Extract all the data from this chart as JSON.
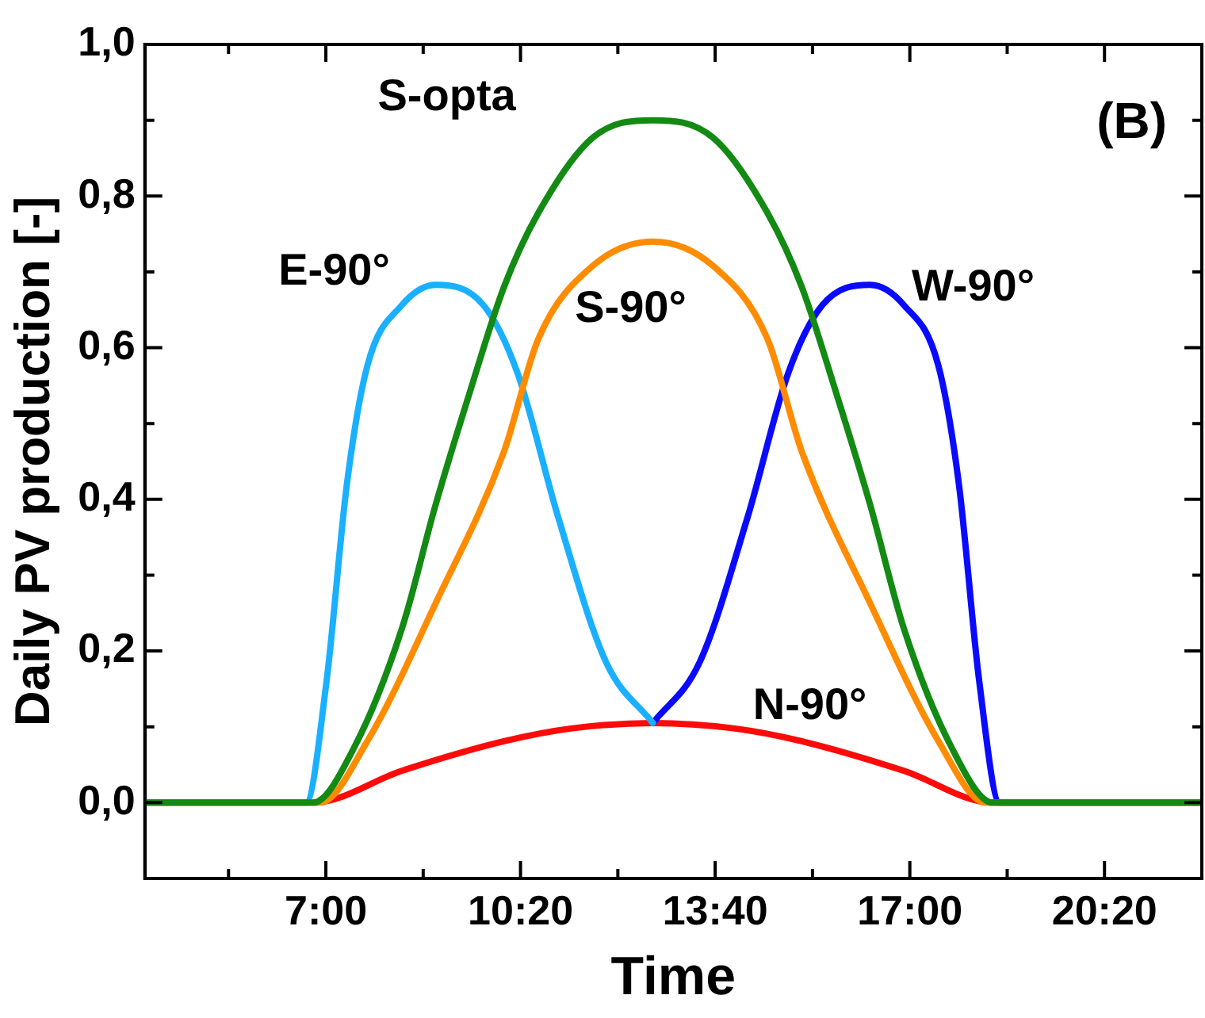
{
  "chart_data": {
    "type": "line",
    "xlabel": "Time",
    "ylabel": "Daily PV production [-]",
    "annotations": [
      "(B)"
    ],
    "xlim": [
      3.9,
      22
    ],
    "ylim": [
      -0.1,
      1.0
    ],
    "xticks": [
      {
        "value": 5.3333,
        "label": null
      },
      {
        "value": 7,
        "label": "7:00"
      },
      {
        "value": 8.6667,
        "label": null
      },
      {
        "value": 10.3333,
        "label": "10:20"
      },
      {
        "value": 12,
        "label": null
      },
      {
        "value": 13.6667,
        "label": "13:40"
      },
      {
        "value": 15.3333,
        "label": null
      },
      {
        "value": 17,
        "label": "17:00"
      },
      {
        "value": 18.6667,
        "label": null
      },
      {
        "value": 20.3333,
        "label": "20:20"
      }
    ],
    "yticks": [
      {
        "value": 0,
        "label": "0,0"
      },
      {
        "value": 0.1,
        "label": null
      },
      {
        "value": 0.2,
        "label": "0,2"
      },
      {
        "value": 0.3,
        "label": null
      },
      {
        "value": 0.4,
        "label": "0,4"
      },
      {
        "value": 0.5,
        "label": null
      },
      {
        "value": 0.6,
        "label": "0,6"
      },
      {
        "value": 0.7,
        "label": null
      },
      {
        "value": 0.8,
        "label": "0,8"
      },
      {
        "value": 0.9,
        "label": null
      },
      {
        "value": 1.0,
        "label": "1,0"
      }
    ],
    "grid": false,
    "legend": false,
    "marker": "none",
    "line_style": "solid",
    "series": [
      {
        "name": "S-opta",
        "color": "#138a13",
        "x": [
          3.9,
          6.78,
          7.48,
          8.3,
          8.88,
          9.46,
          10.05,
          10.64,
          11.57,
          12.6,
          13.63,
          14.56,
          15.15,
          15.74,
          16.32,
          16.9,
          17.72,
          18.42,
          22
        ],
        "values": [
          0,
          0,
          0.072,
          0.229,
          0.393,
          0.54,
          0.68,
          0.778,
          0.877,
          0.9,
          0.877,
          0.778,
          0.68,
          0.54,
          0.393,
          0.229,
          0.072,
          0,
          0
        ]
      },
      {
        "name": "S-90°",
        "color": "#ff8c00",
        "x": [
          3.9,
          6.9,
          7.71,
          8.88,
          10.05,
          10.64,
          11.57,
          12.6,
          13.63,
          14.56,
          15.15,
          16.32,
          17.49,
          18.3,
          22
        ],
        "values": [
          0,
          0,
          0.081,
          0.263,
          0.463,
          0.612,
          0.708,
          0.74,
          0.708,
          0.612,
          0.463,
          0.263,
          0.081,
          0,
          0
        ]
      },
      {
        "name": "E-90°",
        "color": "#1ab0ff",
        "x": [
          3.9,
          6.66,
          7.01,
          7.36,
          7.71,
          8.3,
          8.88,
          9.7,
          10.28,
          10.98,
          11.8,
          12.6
        ],
        "values": [
          0,
          0,
          0.159,
          0.42,
          0.576,
          0.656,
          0.683,
          0.656,
          0.567,
          0.376,
          0.185,
          0.105
        ]
      },
      {
        "name": "W-90°",
        "color": "#0a0aff",
        "x": [
          12.6,
          13.4,
          14.22,
          14.92,
          15.5,
          16.32,
          16.9,
          17.49,
          17.84,
          18.19,
          18.54,
          22
        ],
        "values": [
          0.105,
          0.185,
          0.376,
          0.567,
          0.656,
          0.683,
          0.656,
          0.576,
          0.42,
          0.159,
          0,
          0
        ]
      },
      {
        "name": "N-90°",
        "color": "#ff0a0a",
        "x": [
          3.9,
          6.78,
          8.3,
          10.05,
          11.22,
          12.6,
          13.98,
          15.15,
          16.9,
          18.42,
          22
        ],
        "values": [
          0,
          0,
          0.042,
          0.081,
          0.098,
          0.105,
          0.098,
          0.081,
          0.042,
          0,
          0
        ]
      }
    ]
  }
}
